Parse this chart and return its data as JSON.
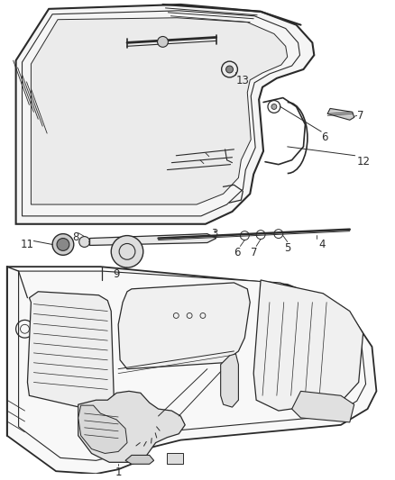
{
  "background_color": "#ffffff",
  "fig_width": 4.38,
  "fig_height": 5.33,
  "dpi": 100,
  "line_color": "#2a2a2a",
  "label_color": "#2a2a2a",
  "label_fontsize": 8.5
}
